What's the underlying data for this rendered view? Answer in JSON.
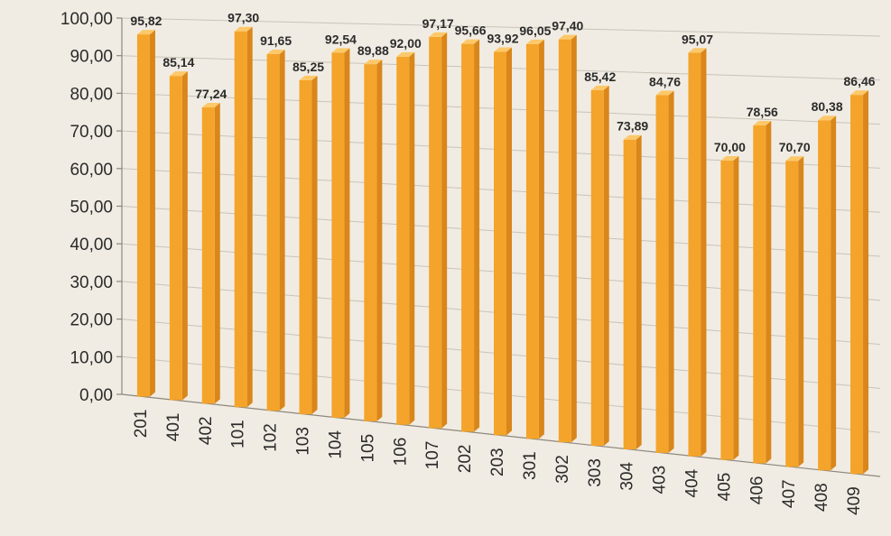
{
  "chart_data": {
    "type": "bar",
    "categories": [
      "201",
      "401",
      "402",
      "101",
      "102",
      "103",
      "104",
      "105",
      "106",
      "107",
      "202",
      "203",
      "301",
      "302",
      "303",
      "304",
      "403",
      "404",
      "405",
      "406",
      "407",
      "408",
      "409"
    ],
    "values": [
      95.82,
      85.14,
      77.24,
      97.3,
      91.65,
      85.25,
      92.54,
      89.88,
      92.0,
      97.17,
      95.66,
      93.92,
      96.05,
      97.4,
      85.42,
      73.89,
      84.76,
      95.07,
      70.0,
      78.56,
      70.7,
      80.38,
      86.46
    ],
    "value_labels": [
      "95,82",
      "85,14",
      "77,24",
      "97,30",
      "91,65",
      "85,25",
      "92,54",
      "89,88",
      "92,00",
      "97,17",
      "95,66",
      "93,92",
      "96,05",
      "97,40",
      "85,42",
      "73,89",
      "84,76",
      "95,07",
      "70,00",
      "78,56",
      "70,70",
      "80,38",
      "86,46"
    ],
    "y_ticks": [
      "0,00",
      "10,00",
      "20,00",
      "30,00",
      "40,00",
      "50,00",
      "60,00",
      "70,00",
      "80,00",
      "90,00",
      "100,00"
    ],
    "ylim": [
      0,
      100
    ],
    "grid": true,
    "legend": "none",
    "title": "",
    "xlabel": "",
    "ylabel": "",
    "colors": {
      "bar_front": "#f4a42a",
      "bar_side": "#d9861a",
      "bar_top": "#fcc86a",
      "grid": "#c9c3b8"
    }
  }
}
